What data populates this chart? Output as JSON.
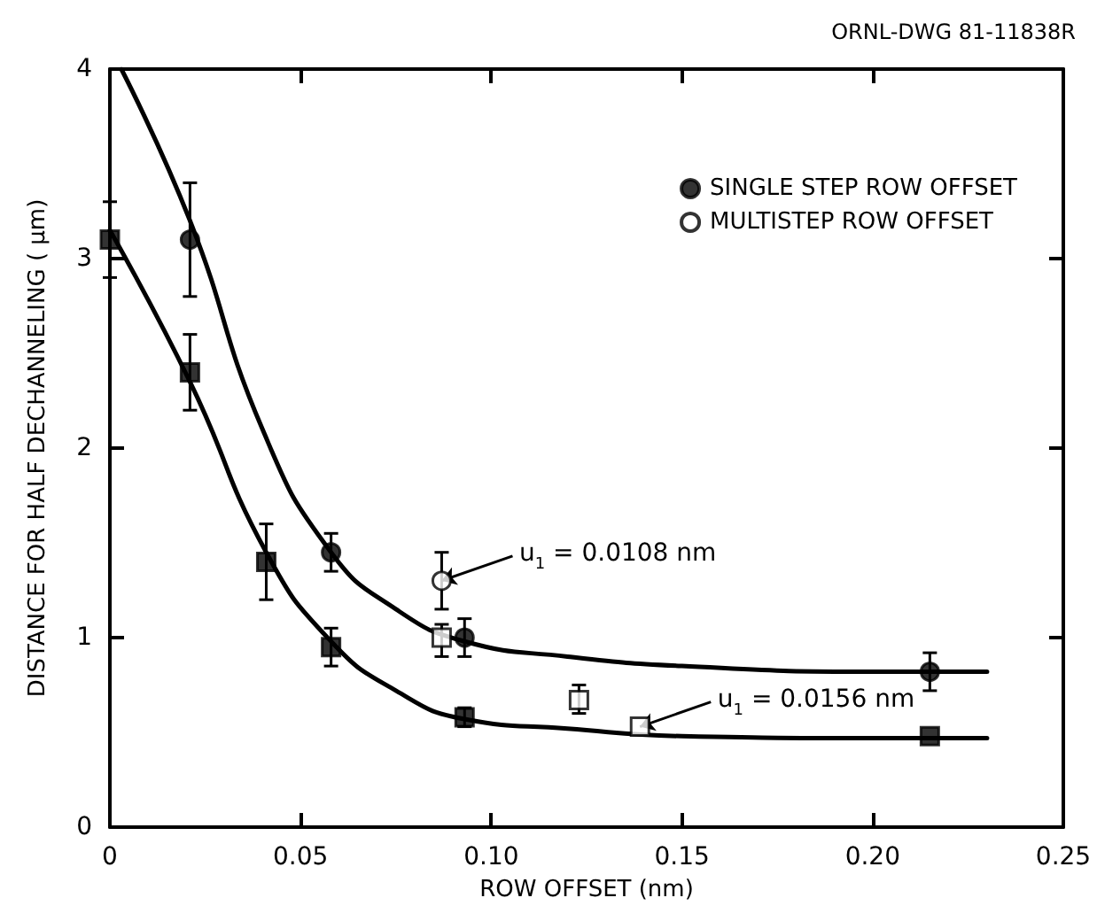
{
  "chart_data": {
    "type": "scatter",
    "xlabel": "ROW OFFSET (nm)",
    "ylabel": "DISTANCE FOR HALF DECHANNELING ( μm)",
    "xlim": [
      0,
      0.25
    ],
    "xticks": [
      0,
      0.05,
      {
        "value": 0.1,
        "label": "0.10"
      },
      0.15,
      {
        "value": 0.2,
        "label": "0.20"
      },
      0.25
    ],
    "ylim": [
      0,
      4
    ],
    "yticks": [
      0,
      1,
      2,
      3,
      4
    ],
    "grid": false,
    "legend": "top right",
    "series": [
      {
        "name": "SINGLE STEP ROW OFFSET",
        "color": "#000000",
        "marker": "circle",
        "x": [
          0.021,
          0.058,
          0.093,
          0.215
        ],
        "values": [
          3.1,
          1.45,
          1.0,
          0.82
        ],
        "errors": [
          [
            2.8,
            3.4
          ],
          [
            1.35,
            1.55
          ],
          [
            0.9,
            1.1
          ],
          [
            0.72,
            0.92
          ]
        ]
      },
      {
        "color": "#000000",
        "marker": "square",
        "x": [
          0,
          0.021,
          0.041,
          0.058,
          0.093,
          0.215
        ],
        "values": [
          3.1,
          2.4,
          1.4,
          0.95,
          0.58,
          0.48
        ],
        "errors": [
          [
            2.9,
            3.3
          ],
          [
            2.2,
            2.6
          ],
          [
            1.2,
            1.6
          ],
          [
            0.85,
            1.05
          ],
          [
            0.53,
            0.63
          ],
          null
        ]
      },
      {
        "name": "MULTISTEP ROW OFFSET",
        "color": "#ffffff",
        "marker": "circle",
        "x": [
          0.087
        ],
        "values": [
          1.3
        ],
        "errors": [
          [
            1.15,
            1.45
          ]
        ]
      },
      {
        "color": "#ffffff",
        "marker": "square",
        "x": [
          0.087,
          0.123,
          0.139
        ],
        "values": [
          1.0,
          0.67,
          0.53
        ],
        "errors": [
          [
            0.9,
            1.07
          ],
          [
            0.6,
            0.75
          ],
          null
        ]
      },
      {
        "type": "line",
        "color": "#000000",
        "x": [
          0.003,
          0.021,
          0.04,
          0.058,
          0.075,
          0.093,
          0.12,
          0.15,
          0.2,
          0.23
        ],
        "values": [
          4.0,
          3.2,
          2.1,
          1.45,
          1.15,
          0.98,
          0.9,
          0.85,
          0.82,
          0.82
        ]
      },
      {
        "type": "line",
        "color": "#000000",
        "x": [
          0,
          0.021,
          0.041,
          0.058,
          0.075,
          0.093,
          0.12,
          0.15,
          0.2,
          0.23
        ],
        "values": [
          3.15,
          2.35,
          1.45,
          0.98,
          0.72,
          0.57,
          0.52,
          0.48,
          0.47,
          0.47
        ]
      }
    ],
    "annotations": [
      "ORNL-DWG 81-11838R",
      {
        "text": "u$_{1}$ = 0.0108 nm",
        "x": 0.087,
        "y": 1.3
      },
      {
        "text": "u$_{1}$ = 0.0156 nm",
        "x": 0.139,
        "y": 0.53
      }
    ]
  }
}
